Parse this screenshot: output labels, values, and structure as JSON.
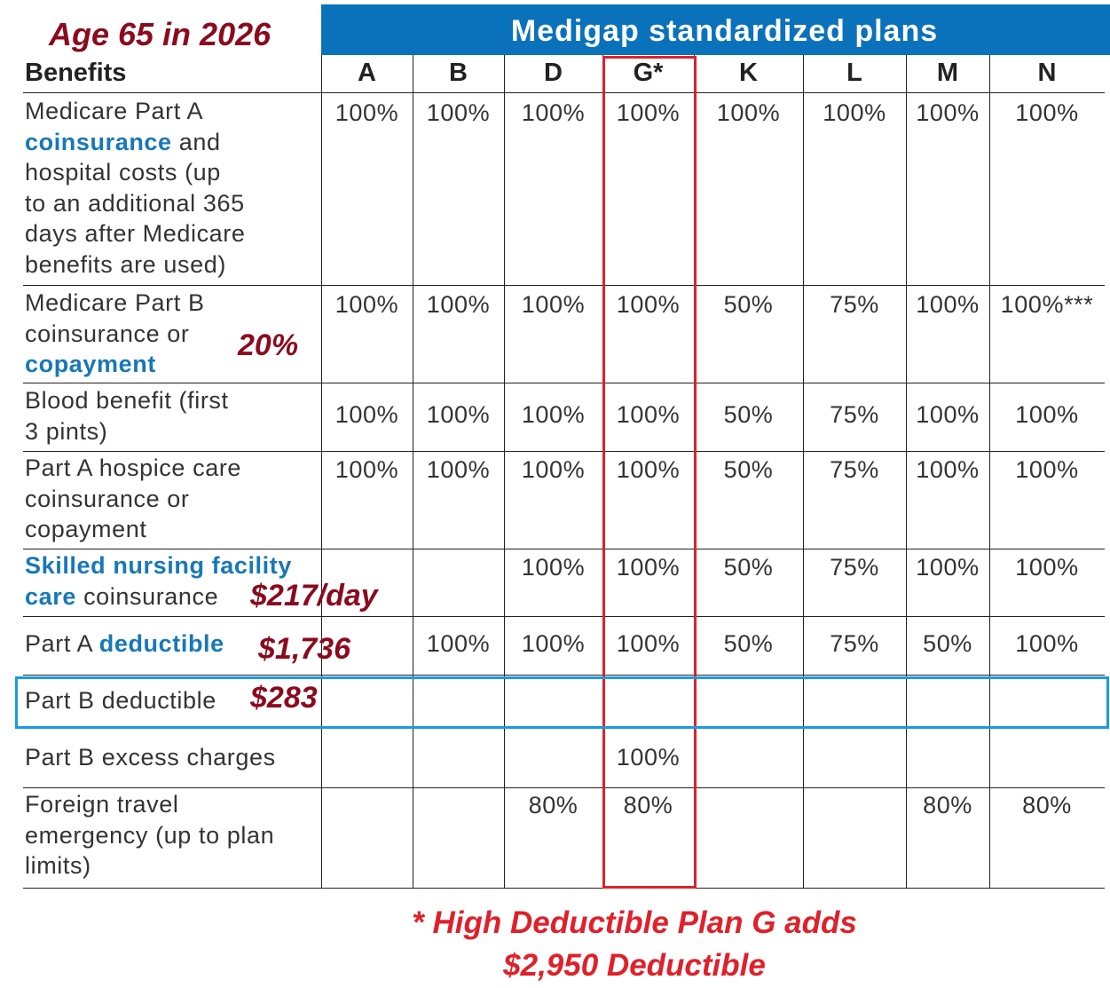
{
  "title": "Age 65 in 2026",
  "header": "Medigap standardized plans",
  "benefits_label": "Benefits",
  "plans": [
    "A",
    "B",
    "D",
    "G*",
    "K",
    "L",
    "M",
    "N"
  ],
  "rows": [
    {
      "label": [
        {
          "t": "Medicare Part A\n"
        },
        {
          "t": "coinsurance",
          "b": true
        },
        {
          "t": " and\nhospital costs (up\nto an additional 365\ndays after Medicare\nbenefits are used)"
        }
      ],
      "values": [
        "100%",
        "100%",
        "100%",
        "100%",
        "100%",
        "100%",
        "100%",
        "100%"
      ]
    },
    {
      "label": [
        {
          "t": "Medicare Part B\ncoinsurance or\n"
        },
        {
          "t": "copayment",
          "b": true
        }
      ],
      "values": [
        "100%",
        "100%",
        "100%",
        "100%",
        "50%",
        "75%",
        "100%",
        "100%***"
      ],
      "note": "20%"
    },
    {
      "label": [
        {
          "t": "Blood benefit (first\n3 pints)"
        }
      ],
      "values": [
        "100%",
        "100%",
        "100%",
        "100%",
        "50%",
        "75%",
        "100%",
        "100%"
      ]
    },
    {
      "label": [
        {
          "t": "Part A hospice care\ncoinsurance or\ncopayment"
        }
      ],
      "values": [
        "100%",
        "100%",
        "100%",
        "100%",
        "50%",
        "75%",
        "100%",
        "100%"
      ]
    },
    {
      "label": [
        {
          "t": "Skilled nursing facility\ncare",
          "b": true
        },
        {
          "t": " coinsurance"
        }
      ],
      "values": [
        "",
        "",
        "100%",
        "100%",
        "50%",
        "75%",
        "100%",
        "100%"
      ],
      "note": "$217/day"
    },
    {
      "label": [
        {
          "t": "Part A "
        },
        {
          "t": "deductible",
          "b": true
        }
      ],
      "values": [
        "",
        "100%",
        "100%",
        "100%",
        "50%",
        "75%",
        "50%",
        "100%"
      ],
      "note": "$1,736"
    },
    {
      "label": [
        {
          "t": "Part B deductible"
        }
      ],
      "values": [
        "",
        "",
        "",
        "",
        "",
        "",
        "",
        ""
      ],
      "note": "$283"
    },
    {
      "label": [
        {
          "t": "Part B excess charges"
        }
      ],
      "values": [
        "",
        "",
        "",
        "100%",
        "",
        "",
        "",
        ""
      ]
    },
    {
      "label": [
        {
          "t": "Foreign travel\nemergency (up to plan\nlimits)"
        }
      ],
      "values": [
        "",
        "",
        "80%",
        "80%",
        "",
        "",
        "80%",
        "80%"
      ]
    }
  ],
  "footnote": [
    "* High Deductible Plan G adds",
    "$2,950 Deductible"
  ]
}
